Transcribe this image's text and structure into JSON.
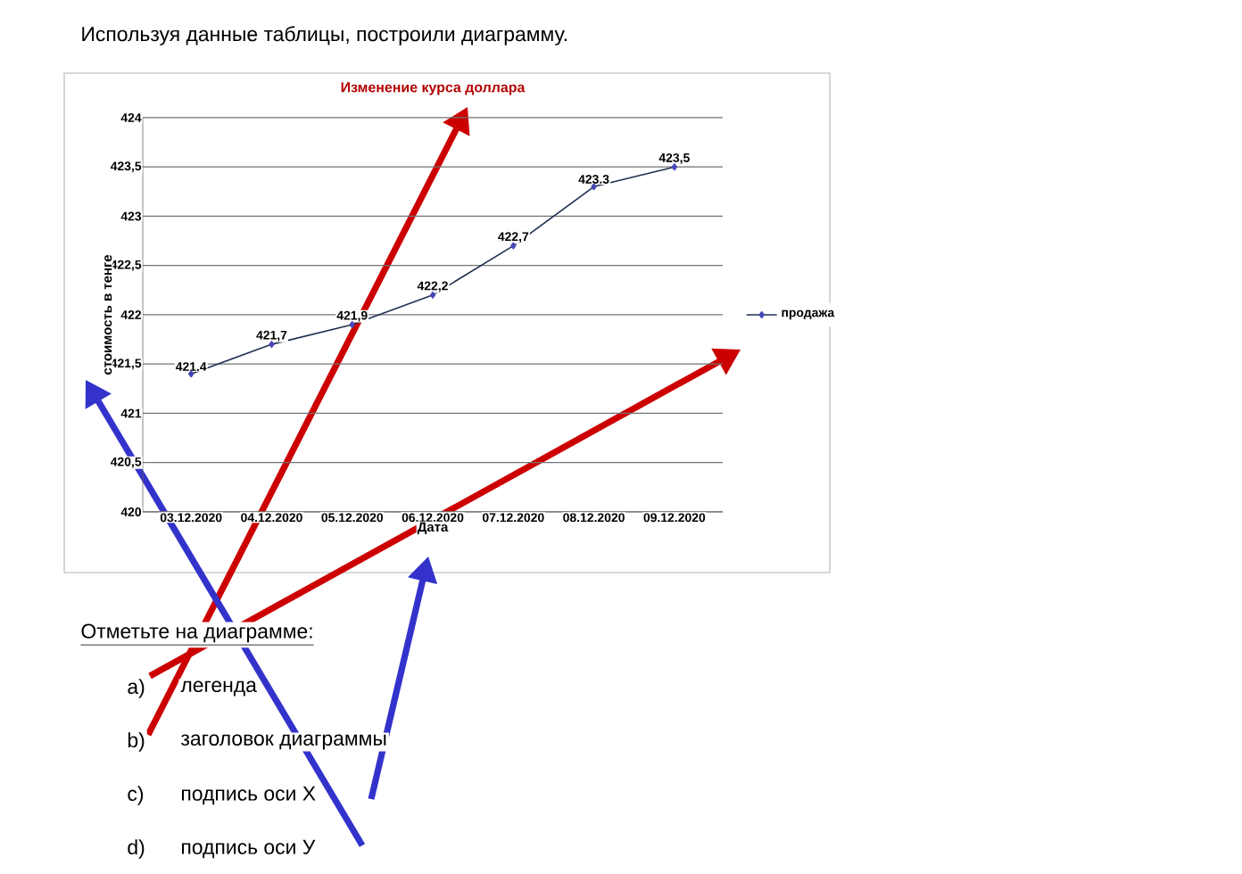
{
  "chart_data": {
    "type": "line",
    "title": "Изменение курса доллара",
    "xlabel": "Дата",
    "ylabel": "стоимость в тенге",
    "categories": [
      "03.12.2020",
      "04.12.2020",
      "05.12.2020",
      "06.12.2020",
      "07.12.2020",
      "08.12.2020",
      "09.12.2020"
    ],
    "series": [
      {
        "name": "продажа",
        "color": "#1f3050",
        "values": [
          421.4,
          421.7,
          421.9,
          422.2,
          422.7,
          423.3,
          423.5
        ],
        "value_labels": [
          "421.4",
          "421,7",
          "421,9",
          "422,2",
          "422,7",
          "423.3",
          "423,5"
        ]
      }
    ],
    "ylim": [
      420,
      424
    ],
    "yticks": [
      420,
      {
        "value": 420.5,
        "label": "420,5"
      },
      421,
      {
        "value": 421.5,
        "label": "421,5"
      },
      422,
      {
        "value": 422.5,
        "label": "422,5"
      },
      423,
      {
        "value": 423.5,
        "label": "423,5"
      },
      424
    ],
    "grid": "y",
    "legend": "right",
    "marker": "diamond",
    "line_style": "solid",
    "annotations": [
      "Используя данные таблицы, построили диаграмму.",
      "Отметьте на диаграмме:",
      "a)",
      "легенда",
      "b)",
      "заголовок диаграммы",
      "c)",
      "подпись оси X",
      "d)",
      "подпись оси У"
    ]
  }
}
